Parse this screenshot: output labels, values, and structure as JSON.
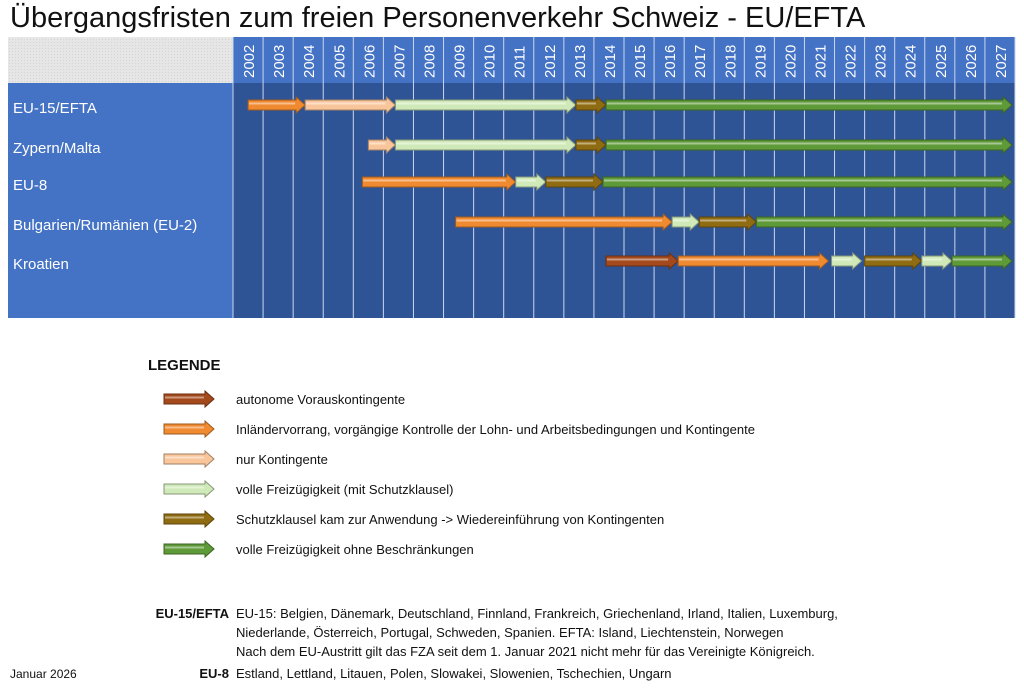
{
  "title": "Übergangsfristen zum freien Personenverkehr Schweiz - EU/EFTA",
  "colors": {
    "autonomous": "#a4491c",
    "priority": "#f08a30",
    "quota": "#f9c69c",
    "free_safeguard": "#cfe9b8",
    "safeguard_applied": "#8f6b12",
    "free": "#5e9a38",
    "header": "#4472c4",
    "body": "#2f5496",
    "label_col": "#4472c4"
  },
  "chart_data": {
    "type": "bar",
    "orientation": "horizontal-timeline",
    "title": "Übergangsfristen zum freien Personenverkehr Schweiz - EU/EFTA",
    "years": [
      "2002",
      "2003",
      "2004",
      "2005",
      "2006",
      "2007",
      "2008",
      "2009",
      "2010",
      "2011",
      "2012",
      "2013",
      "2014",
      "2015",
      "2016",
      "2017",
      "2018",
      "2019",
      "2020",
      "2021",
      "2022",
      "2023",
      "2024",
      "2025",
      "2026",
      "2027"
    ],
    "xlim": [
      2002,
      2028
    ],
    "grid": true,
    "rows": [
      {
        "label": "EU-15/EFTA",
        "segments": [
          {
            "phase": "priority",
            "start": 2002.5,
            "end": 2004.4
          },
          {
            "phase": "quota",
            "start": 2004.4,
            "end": 2007.4
          },
          {
            "phase": "free_safeguard",
            "start": 2007.4,
            "end": 2013.4
          },
          {
            "phase": "safeguard_applied",
            "start": 2013.4,
            "end": 2014.4
          },
          {
            "phase": "free",
            "start": 2014.4,
            "end": 2027.9
          }
        ]
      },
      {
        "label": "Zypern/Malta",
        "segments": [
          {
            "phase": "quota",
            "start": 2006.5,
            "end": 2007.4
          },
          {
            "phase": "free_safeguard",
            "start": 2007.4,
            "end": 2013.4
          },
          {
            "phase": "safeguard_applied",
            "start": 2013.4,
            "end": 2014.4
          },
          {
            "phase": "free",
            "start": 2014.4,
            "end": 2027.9
          }
        ]
      },
      {
        "label": "EU-8",
        "segments": [
          {
            "phase": "priority",
            "start": 2006.3,
            "end": 2011.4
          },
          {
            "phase": "free_safeguard",
            "start": 2011.4,
            "end": 2012.4
          },
          {
            "phase": "safeguard_applied",
            "start": 2012.4,
            "end": 2014.3
          },
          {
            "phase": "free",
            "start": 2014.3,
            "end": 2027.9
          }
        ]
      },
      {
        "label": "Bulgarien/Rumänien (EU-2)",
        "segments": [
          {
            "phase": "priority",
            "start": 2009.4,
            "end": 2016.6
          },
          {
            "phase": "free_safeguard",
            "start": 2016.6,
            "end": 2017.5
          },
          {
            "phase": "safeguard_applied",
            "start": 2017.5,
            "end": 2019.4
          },
          {
            "phase": "free",
            "start": 2019.4,
            "end": 2027.9
          }
        ]
      },
      {
        "label": "Kroatien",
        "segments": [
          {
            "phase": "autonomous",
            "start": 2014.4,
            "end": 2016.8
          },
          {
            "phase": "priority",
            "start": 2016.8,
            "end": 2021.8
          },
          {
            "phase": "free_safeguard",
            "start": 2021.9,
            "end": 2022.9
          },
          {
            "phase": "safeguard_applied",
            "start": 2023.0,
            "end": 2024.9
          },
          {
            "phase": "free_safeguard",
            "start": 2024.9,
            "end": 2025.9
          },
          {
            "phase": "free",
            "start": 2025.9,
            "end": 2027.9
          }
        ]
      }
    ]
  },
  "legend": {
    "title": "LEGENDE",
    "items": [
      {
        "phase": "autonomous",
        "label": "autonome Vorauskontingente"
      },
      {
        "phase": "priority",
        "label": "Inländervorrang, vorgängige Kontrolle der Lohn- und Arbeitsbedingungen und Kontingente"
      },
      {
        "phase": "quota",
        "label": "nur Kontingente"
      },
      {
        "phase": "free_safeguard",
        "label": "volle Freizügigkeit (mit Schutzklausel)"
      },
      {
        "phase": "safeguard_applied",
        "label": "Schutzklausel kam zur Anwendung -> Wiedereinführung von Kontingenten"
      },
      {
        "phase": "free",
        "label": "volle Freizügigkeit ohne Beschränkungen"
      }
    ]
  },
  "notes": {
    "eu15_key": "EU-15/EFTA",
    "eu15_lines": [
      "EU-15: Belgien, Dänemark, Deutschland, Finnland, Frankreich, Griechenland, Irland, Italien, Luxemburg,",
      "Niederlande, Österreich, Portugal, Schweden, Spanien. EFTA: Island, Liechtenstein, Norwegen",
      "Nach dem EU-Austritt gilt das FZA seit dem 1. Januar 2021 nicht mehr für das Vereinigte Königreich."
    ],
    "eu8_key": "EU-8",
    "eu8_text": "Estland, Lettland, Litauen, Polen, Slowakei, Slowenien, Tschechien, Ungarn"
  },
  "date": "Januar 2026"
}
